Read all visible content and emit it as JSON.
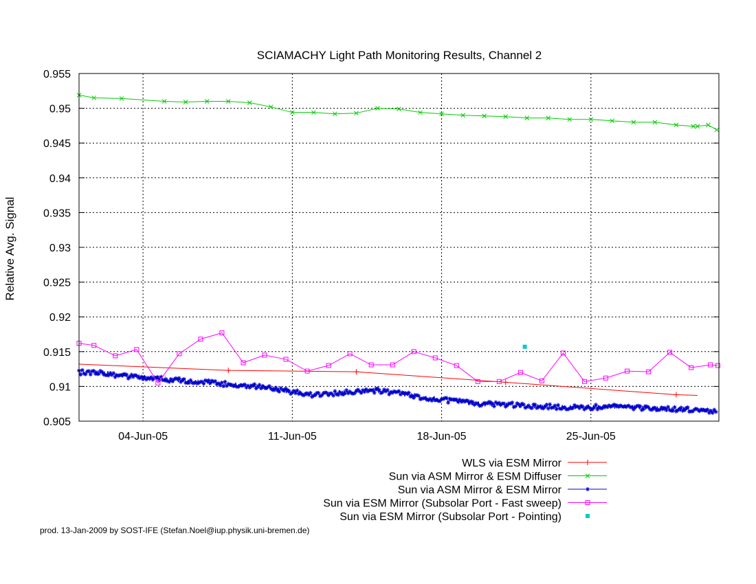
{
  "chart_data": {
    "type": "line",
    "title": "SCIAMACHY Light Path Monitoring Results, Channel 2",
    "xlabel": "",
    "ylabel": "Relative Avg. Signal",
    "x_range": [
      "2005-06-01",
      "2005-06-30"
    ],
    "x_ticks": [
      {
        "date": "2005-06-04",
        "label": "04-Jun-05"
      },
      {
        "date": "2005-06-11",
        "label": "11-Jun-05"
      },
      {
        "date": "2005-06-18",
        "label": "18-Jun-05"
      },
      {
        "date": "2005-06-25",
        "label": "25-Jun-05"
      }
    ],
    "ylim": [
      0.905,
      0.955
    ],
    "y_ticks": [
      "0.905",
      "0.91",
      "0.915",
      "0.92",
      "0.925",
      "0.93",
      "0.935",
      "0.94",
      "0.945",
      "0.95",
      "0.955"
    ],
    "grid": true,
    "legend_position": "below",
    "series": [
      {
        "name": "WLS via ESM Mirror",
        "color": "#ff0000",
        "marker": "plus",
        "points": [
          [
            "2005-06-01",
            0.9132
          ],
          [
            "2005-06-08",
            0.9123
          ],
          [
            "2005-06-14",
            0.9121
          ],
          [
            "2005-06-21",
            0.9106
          ],
          [
            "2005-06-29",
            0.9088
          ],
          [
            "2005-06-30",
            0.9087
          ]
        ],
        "marker_dates": [
          "2005-06-08",
          "2005-06-14",
          "2005-06-21",
          "2005-06-29"
        ]
      },
      {
        "name": "Sun via ASM Mirror & ESM Diffuser",
        "color": "#00cc00",
        "marker": "cross",
        "points": [
          [
            "2005-06-01",
            0.9519
          ],
          [
            "2005-06-01.7",
            0.9515
          ],
          [
            "2005-06-03",
            0.9514
          ],
          [
            "2005-06-05",
            0.951
          ],
          [
            "2005-06-06",
            0.9509
          ],
          [
            "2005-06-07",
            0.951
          ],
          [
            "2005-06-08",
            0.951
          ],
          [
            "2005-06-09",
            0.9508
          ],
          [
            "2005-06-10",
            0.9502
          ],
          [
            "2005-06-11",
            0.9494
          ],
          [
            "2005-06-12",
            0.9494
          ],
          [
            "2005-06-13",
            0.9492
          ],
          [
            "2005-06-14",
            0.9493
          ],
          [
            "2005-06-15",
            0.95
          ],
          [
            "2005-06-16",
            0.9499
          ],
          [
            "2005-06-17",
            0.9494
          ],
          [
            "2005-06-18",
            0.9492
          ],
          [
            "2005-06-19",
            0.949
          ],
          [
            "2005-06-20",
            0.9489
          ],
          [
            "2005-06-21",
            0.9488
          ],
          [
            "2005-06-22",
            0.9486
          ],
          [
            "2005-06-23",
            0.9486
          ],
          [
            "2005-06-24",
            0.9484
          ],
          [
            "2005-06-25",
            0.9484
          ],
          [
            "2005-06-26",
            0.9482
          ],
          [
            "2005-06-27",
            0.948
          ],
          [
            "2005-06-28",
            0.948
          ],
          [
            "2005-06-29",
            0.9476
          ],
          [
            "2005-06-29.8",
            0.9474
          ],
          [
            "2005-06-30",
            0.9474
          ],
          [
            "2005-06-30.5",
            0.9476
          ],
          [
            "2005-06-30.9",
            0.9469
          ]
        ]
      },
      {
        "name": "Sun via ASM Mirror & ESM Mirror",
        "color": "#0000cc",
        "marker": "star",
        "points": [
          [
            "2005-06-01",
            0.912
          ],
          [
            "2005-06-02",
            0.9121
          ],
          [
            "2005-06-03",
            0.9115
          ],
          [
            "2005-06-04",
            0.9113
          ],
          [
            "2005-06-05",
            0.911
          ],
          [
            "2005-06-06",
            0.9108
          ],
          [
            "2005-06-07",
            0.9106
          ],
          [
            "2005-06-08",
            0.9103
          ],
          [
            "2005-06-09",
            0.9101
          ],
          [
            "2005-06-10",
            0.9097
          ],
          [
            "2005-06-11",
            0.9092
          ],
          [
            "2005-06-12",
            0.9087
          ],
          [
            "2005-06-13",
            0.909
          ],
          [
            "2005-06-14",
            0.9093
          ],
          [
            "2005-06-15",
            0.9094
          ],
          [
            "2005-06-16",
            0.909
          ],
          [
            "2005-06-17",
            0.9085
          ],
          [
            "2005-06-18",
            0.9081
          ],
          [
            "2005-06-19",
            0.9077
          ],
          [
            "2005-06-20",
            0.9075
          ],
          [
            "2005-06-21",
            0.9074
          ],
          [
            "2005-06-22",
            0.9072
          ],
          [
            "2005-06-23",
            0.9071
          ],
          [
            "2005-06-24",
            0.907
          ],
          [
            "2005-06-25",
            0.907
          ],
          [
            "2005-06-26",
            0.9071
          ],
          [
            "2005-06-27",
            0.907
          ],
          [
            "2005-06-28",
            0.9068
          ],
          [
            "2005-06-29",
            0.9067
          ],
          [
            "2005-06-30",
            0.9066
          ],
          [
            "2005-06-30.9",
            0.9064
          ]
        ]
      },
      {
        "name": "Sun via ESM Mirror (Subsolar Port - Fast sweep)",
        "color": "#ff00ff",
        "marker": "square",
        "points": [
          [
            "2005-06-01",
            0.9162
          ],
          [
            "2005-06-01.7",
            0.9159
          ],
          [
            "2005-06-02.7",
            0.9144
          ],
          [
            "2005-06-03.7",
            0.9153
          ],
          [
            "2005-06-04.7",
            0.9105
          ],
          [
            "2005-06-05.7",
            0.9147
          ],
          [
            "2005-06-06.7",
            0.9168
          ],
          [
            "2005-06-07.7",
            0.9177
          ],
          [
            "2005-06-08.7",
            0.9134
          ],
          [
            "2005-06-09.7",
            0.9145
          ],
          [
            "2005-06-10.7",
            0.9139
          ],
          [
            "2005-06-11.7",
            0.9122
          ],
          [
            "2005-06-12.7",
            0.913
          ],
          [
            "2005-06-13.7",
            0.9147
          ],
          [
            "2005-06-14.7",
            0.9131
          ],
          [
            "2005-06-15.7",
            0.9131
          ],
          [
            "2005-06-16.7",
            0.915
          ],
          [
            "2005-06-17.7",
            0.9141
          ],
          [
            "2005-06-18.7",
            0.913
          ],
          [
            "2005-06-19.7",
            0.9107
          ],
          [
            "2005-06-20.7",
            0.9107
          ],
          [
            "2005-06-21.7",
            0.912
          ],
          [
            "2005-06-22.7",
            0.9108
          ],
          [
            "2005-06-23.7",
            0.9148
          ],
          [
            "2005-06-24.7",
            0.9107
          ],
          [
            "2005-06-25.7",
            0.9112
          ],
          [
            "2005-06-26.7",
            0.9122
          ],
          [
            "2005-06-27.7",
            0.9121
          ],
          [
            "2005-06-28.7",
            0.9149
          ],
          [
            "2005-06-29.7",
            0.9127
          ],
          [
            "2005-06-30.6",
            0.9131
          ],
          [
            "2005-06-30.95",
            0.913
          ]
        ]
      },
      {
        "name": "Sun via ESM Mirror (Subsolar Port - Pointing)",
        "color": "#00cccc",
        "marker": "filled-square",
        "points": [
          [
            "2005-06-21.9",
            0.9157
          ]
        ]
      }
    ]
  },
  "credit": "prod. 13-Jan-2009 by SOST-IFE (Stefan.Noel@iup.physik.uni-bremen.de)"
}
